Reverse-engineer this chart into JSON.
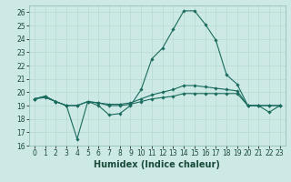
{
  "title": "",
  "xlabel": "Humidex (Indice chaleur)",
  "background_color": "#cce9e5",
  "grid_color": "#b8d8d2",
  "line_color": "#1a6b5e",
  "xlim": [
    -0.5,
    23.5
  ],
  "ylim": [
    16,
    26.5
  ],
  "xticks": [
    0,
    1,
    2,
    3,
    4,
    5,
    6,
    7,
    8,
    9,
    10,
    11,
    12,
    13,
    14,
    15,
    16,
    17,
    18,
    19,
    20,
    21,
    22,
    23
  ],
  "yticks": [
    16,
    17,
    18,
    19,
    20,
    21,
    22,
    23,
    24,
    25,
    26
  ],
  "series": [
    [
      19.5,
      19.7,
      19.3,
      19.0,
      16.5,
      19.3,
      19.0,
      18.3,
      18.4,
      19.0,
      20.2,
      22.5,
      23.3,
      24.7,
      26.1,
      26.1,
      25.1,
      23.9,
      21.3,
      20.6,
      19.0,
      19.0,
      18.5,
      19.0
    ],
    [
      19.5,
      19.6,
      19.3,
      19.0,
      19.0,
      19.3,
      19.2,
      19.1,
      19.1,
      19.2,
      19.5,
      19.8,
      20.0,
      20.2,
      20.5,
      20.5,
      20.4,
      20.3,
      20.2,
      20.1,
      19.0,
      19.0,
      19.0,
      19.0
    ],
    [
      19.5,
      19.7,
      19.3,
      19.0,
      19.0,
      19.3,
      19.2,
      19.0,
      19.0,
      19.1,
      19.3,
      19.5,
      19.6,
      19.7,
      19.9,
      19.9,
      19.9,
      19.9,
      19.9,
      19.9,
      19.0,
      19.0,
      19.0,
      19.0
    ]
  ],
  "marker": "D",
  "markersize": 1.8,
  "linewidth": 0.8,
  "fontsize_label": 7,
  "fontsize_tick": 5.5
}
